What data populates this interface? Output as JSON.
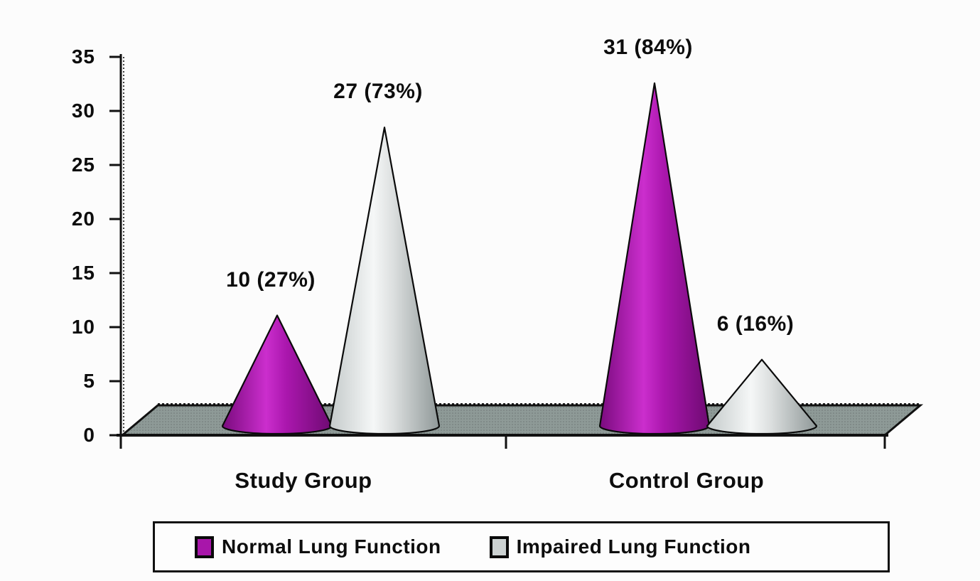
{
  "chart_data": {
    "type": "bar",
    "bar_shape": "cone-3d",
    "title": "",
    "xlabel": "",
    "ylabel": "",
    "categories": [
      "Study Group",
      "Control Group"
    ],
    "series": [
      {
        "name": "Normal Lung Function",
        "values": [
          10,
          31
        ],
        "labels": [
          "10 (27%)",
          "31 (84%)"
        ],
        "color": "#a816aa",
        "gradient": [
          "#7a0b7e",
          "#cb2ecd",
          "#ab17ae",
          "#6e0a72"
        ]
      },
      {
        "name": "Impaired Lung Function",
        "values": [
          27,
          6
        ],
        "labels": [
          "27 (73%)",
          "6 (16%)"
        ],
        "color": "#ccd2d2",
        "gradient": [
          "#c4caca",
          "#f5f7f7",
          "#dcdfdf",
          "#8f9898"
        ]
      }
    ],
    "ylim": [
      0,
      35
    ],
    "yticks": [
      0,
      5,
      10,
      15,
      20,
      25,
      30,
      35
    ],
    "grid": false,
    "legend_position": "bottom",
    "colors": {
      "background": "#fcfcfc",
      "floor": "#8e9a97",
      "axis": "#111111",
      "text": "#0d0d0d",
      "legend_border": "#111111",
      "legend_background": "#fdfdfd"
    }
  }
}
